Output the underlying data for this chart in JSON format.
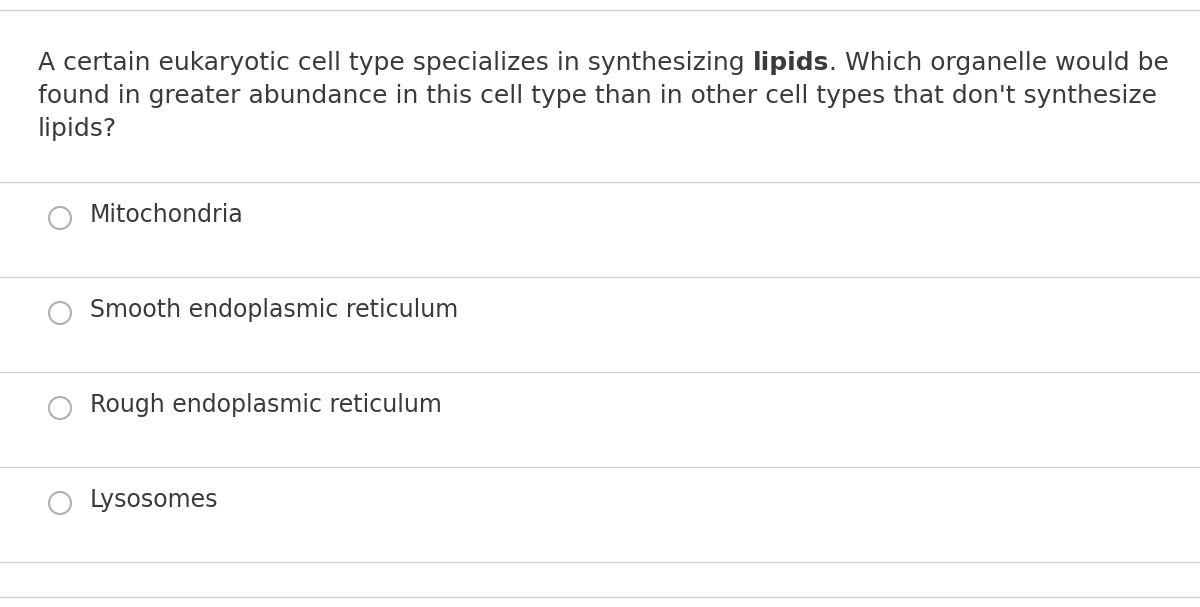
{
  "question_line1_pre": "A certain eukaryotic cell type specializes in synthesizing ",
  "question_line1_bold": "lipids",
  "question_line1_post": ". Which organelle would be",
  "question_line2": "found in greater abundance in this cell type than in other cell types that don't synthesize",
  "question_line3": "lipids?",
  "options": [
    "Mitochondria",
    "Smooth endoplasmic reticulum",
    "Rough endoplasmic reticulum",
    "Lysosomes"
  ],
  "bg_color": "#ffffff",
  "text_color": "#3a3a3a",
  "line_color": "#d0d0d0",
  "circle_edge_color": "#b0b0b0",
  "font_size_question": 18,
  "font_size_options": 17
}
